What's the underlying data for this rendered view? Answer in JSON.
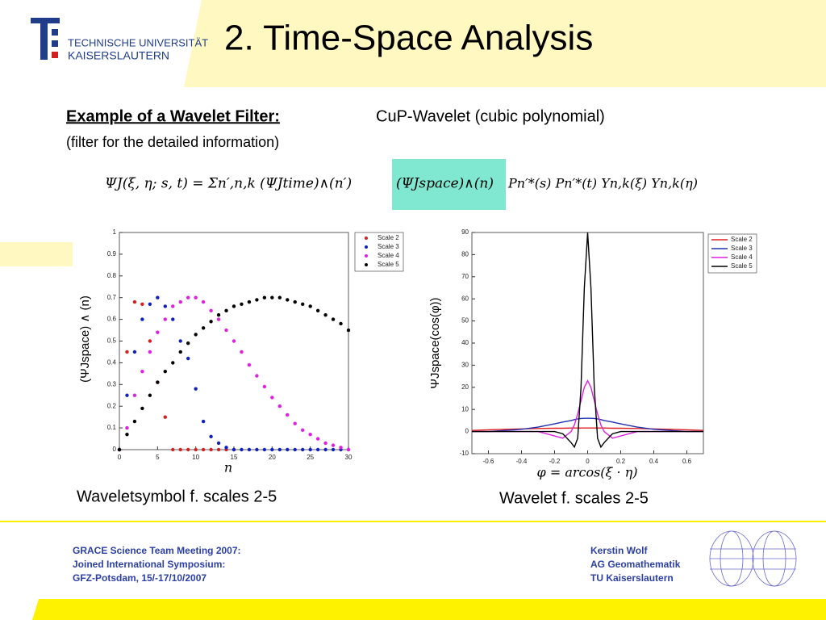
{
  "header": {
    "title": "2. Time-Space Analysis",
    "logo_line1": "TECHNISCHE UNIVERSITÄT",
    "logo_line2": "KAISERSLAUTERN"
  },
  "intro": {
    "heading": "Example of a Wavelet Filter:",
    "text": "CuP-Wavelet (cubic polynomial)",
    "note": "(filter for the detailed information)"
  },
  "formula": {
    "left": "ΨJ(ξ, η; s, t) = Σn′,n,k (ΨJtime)∧(n′)",
    "highlight": "(ΨJspace)∧(n)",
    "right": "Pn′*(s) Pn′*(t) Yn,k(ξ) Yn,k(η)"
  },
  "captions": [
    "Waveletsymbol f. scales 2-5",
    "Wavelet f. scales 2-5"
  ],
  "footer": {
    "left": [
      "GRACE Science Team Meeting 2007:",
      "Joined International Symposium:",
      "GFZ-Potsdam, 15/-17/10/2007"
    ],
    "right": [
      "Kerstin Wolf",
      "AG Geomathematik",
      "TU Kaiserslautern"
    ]
  },
  "chart_data": [
    {
      "type": "scatter",
      "xlabel": "n",
      "ylabel": "(ΨJspace) ∧ (n)",
      "x": [
        0,
        1,
        2,
        3,
        4,
        5,
        6,
        7,
        8,
        9,
        10,
        11,
        12,
        13,
        14,
        15,
        16,
        17,
        18,
        19,
        20,
        21,
        22,
        23,
        24,
        25,
        26,
        27,
        28,
        29,
        30
      ],
      "series": [
        {
          "name": "Scale 2",
          "color": "#d62020",
          "values": [
            0,
            0.45,
            0.68,
            0.67,
            0.5,
            0.31,
            0.15,
            0,
            0,
            0,
            0,
            0,
            0,
            0,
            0,
            0,
            null,
            null,
            null,
            null,
            null,
            null,
            null,
            null,
            null,
            null,
            null,
            null,
            null,
            null,
            null
          ]
        },
        {
          "name": "Scale 3",
          "color": "#1020c0",
          "values": [
            0,
            0.25,
            0.45,
            0.6,
            0.67,
            0.7,
            0.66,
            0.6,
            0.5,
            0.42,
            0.28,
            0.13,
            0.06,
            0.03,
            0.01,
            0,
            0,
            0,
            0,
            0,
            0,
            0,
            0,
            0,
            0,
            0,
            0,
            0,
            0,
            0,
            0
          ]
        },
        {
          "name": "Scale 4",
          "color": "#e020e0",
          "values": [
            0,
            0.1,
            0.25,
            0.36,
            0.45,
            0.54,
            0.6,
            0.66,
            0.68,
            0.7,
            0.7,
            0.68,
            0.64,
            0.6,
            0.55,
            0.5,
            0.45,
            0.39,
            0.34,
            0.29,
            0.24,
            0.2,
            0.16,
            0.12,
            0.09,
            0.07,
            0.05,
            0.03,
            0.02,
            0.01,
            0
          ]
        },
        {
          "name": "Scale 5",
          "color": "#000000",
          "values": [
            0,
            0.07,
            0.13,
            0.19,
            0.25,
            0.31,
            0.36,
            0.4,
            0.45,
            0.49,
            0.53,
            0.56,
            0.59,
            0.62,
            0.64,
            0.66,
            0.67,
            0.68,
            0.69,
            0.7,
            0.7,
            0.7,
            0.69,
            0.68,
            0.67,
            0.66,
            0.64,
            0.62,
            0.6,
            0.58,
            0.55
          ]
        }
      ],
      "xlim": [
        0,
        30
      ],
      "xticks": [
        0,
        5,
        10,
        15,
        20,
        25,
        30
      ],
      "ylim": [
        0,
        1
      ],
      "yticks": [
        0,
        0.1,
        0.2,
        0.3,
        0.4,
        0.5,
        0.6,
        0.7,
        0.8,
        0.9,
        1
      ]
    },
    {
      "type": "line",
      "xlabel": "φ = arcos(ξ · η)",
      "ylabel": "ΨJspace(cos(φ))",
      "x": [
        -0.7,
        -0.6,
        -0.5,
        -0.4,
        -0.3,
        -0.2,
        -0.15,
        -0.1,
        -0.08,
        -0.06,
        -0.04,
        -0.02,
        0,
        0.02,
        0.04,
        0.06,
        0.08,
        0.1,
        0.15,
        0.2,
        0.3,
        0.4,
        0.5,
        0.6,
        0.7
      ],
      "series": [
        {
          "name": "Scale 2",
          "color": "#e02020",
          "values": [
            0.5,
            0.8,
            1,
            1.2,
            1.4,
            1.5,
            1.5,
            1.6,
            1.6,
            1.6,
            1.6,
            1.6,
            1.6,
            1.6,
            1.6,
            1.6,
            1.6,
            1.6,
            1.5,
            1.5,
            1.4,
            1.2,
            1,
            0.8,
            0.5
          ]
        },
        {
          "name": "Scale 3",
          "color": "#2030b0",
          "values": [
            0,
            0,
            0.5,
            1,
            2,
            3.5,
            4.3,
            5,
            5.4,
            5.7,
            5.9,
            6,
            6,
            6,
            5.9,
            5.7,
            5.4,
            5,
            4.3,
            3.5,
            2,
            1,
            0.5,
            0,
            0
          ]
        },
        {
          "name": "Scale 4",
          "color": "#e020e0",
          "values": [
            0,
            0,
            0,
            0,
            0,
            -2,
            -3,
            0,
            3,
            8,
            14,
            20,
            23,
            20,
            14,
            8,
            3,
            0,
            -3,
            -2,
            0,
            0,
            0,
            0,
            0
          ]
        },
        {
          "name": "Scale 5",
          "color": "#000000",
          "values": [
            0,
            0,
            0,
            0,
            0,
            0,
            -1,
            -5,
            -7,
            -3,
            20,
            65,
            90,
            65,
            20,
            -3,
            -7,
            -5,
            -1,
            0,
            0,
            0,
            0,
            0,
            0
          ]
        }
      ],
      "xlim": [
        -0.7,
        0.7
      ],
      "xticks": [
        -0.6,
        -0.4,
        -0.2,
        0,
        0.2,
        0.4,
        0.6
      ],
      "ylim": [
        -10,
        90
      ],
      "yticks": [
        -10,
        0,
        10,
        20,
        30,
        40,
        50,
        60,
        70,
        80,
        90
      ]
    }
  ]
}
